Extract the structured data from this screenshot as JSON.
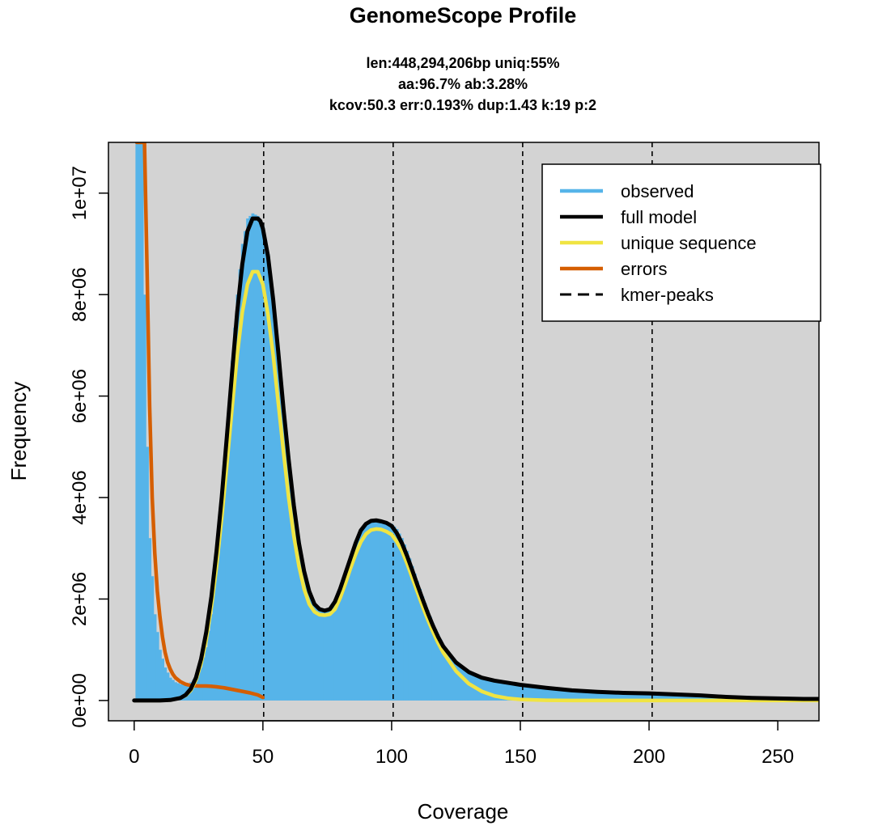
{
  "chart_data": {
    "type": "area",
    "title": "GenomeScope Profile",
    "subtitle_lines": [
      "len:448,294,206bp uniq:55%",
      "aa:96.7% ab:3.28%",
      "kcov:50.3 err:0.193%  dup:1.43  k:19 p:2"
    ],
    "xlabel": "Coverage",
    "ylabel": "Frequency",
    "xlim": [
      -10,
      266
    ],
    "ylim": [
      -400000,
      11000000
    ],
    "x_ticks": [
      0,
      50,
      100,
      150,
      200,
      250
    ],
    "x_tick_labels": [
      "0",
      "50",
      "100",
      "150",
      "200",
      "250"
    ],
    "y_ticks": [
      0,
      2000000,
      4000000,
      6000000,
      8000000,
      10000000
    ],
    "y_tick_labels": [
      "0e+00",
      "2e+06",
      "4e+06",
      "6e+06",
      "8e+06",
      "1e+07"
    ],
    "kmer_peaks": [
      50.3,
      100.6,
      150.9,
      201.2
    ],
    "legend_position": "top-right",
    "background": "#d3d3d3",
    "series": [
      {
        "name": "observed",
        "style": "bars",
        "color": "#56b4e9",
        "x": [
          1,
          2,
          3,
          4,
          5,
          6,
          8,
          10,
          12,
          14,
          16,
          18,
          20,
          22,
          24,
          26,
          28,
          30,
          32,
          34,
          36,
          38,
          40,
          42,
          44,
          46,
          48,
          50,
          52,
          54,
          56,
          58,
          60,
          62,
          64,
          66,
          68,
          70,
          72,
          74,
          76,
          78,
          80,
          82,
          84,
          86,
          88,
          90,
          92,
          94,
          96,
          98,
          100,
          102,
          104,
          106,
          108,
          110,
          112,
          114,
          116,
          118,
          120,
          125,
          130,
          135,
          140,
          145,
          150,
          160,
          170,
          180,
          190,
          200,
          210,
          220,
          230,
          240,
          250,
          260,
          266
        ],
        "y": [
          11000000,
          11000000,
          11000000,
          8000000,
          5000000,
          3200000,
          1700000,
          1000000,
          650000,
          450000,
          360000,
          320000,
          320000,
          360000,
          450000,
          650000,
          1050000,
          1700000,
          2600000,
          3800000,
          5200000,
          6700000,
          8000000,
          9000000,
          9500000,
          9600000,
          9550000,
          9350000,
          8800000,
          7900000,
          6900000,
          5800000,
          4800000,
          3900000,
          3150000,
          2550000,
          2150000,
          1900000,
          1800000,
          1780000,
          1820000,
          1950000,
          2200000,
          2500000,
          2850000,
          3150000,
          3380000,
          3500000,
          3560000,
          3570000,
          3550000,
          3520000,
          3480000,
          3380000,
          3200000,
          2950000,
          2650000,
          2350000,
          2050000,
          1780000,
          1520000,
          1300000,
          1100000,
          780000,
          580000,
          460000,
          400000,
          360000,
          320000,
          260000,
          210000,
          180000,
          160000,
          150000,
          130000,
          110000,
          80000,
          60000,
          50000,
          40000,
          40000
        ]
      },
      {
        "name": "full model",
        "style": "line",
        "color": "#000000",
        "x": [
          0,
          5,
          10,
          14,
          18,
          20,
          22,
          24,
          26,
          28,
          30,
          32,
          34,
          36,
          38,
          40,
          42,
          44,
          46,
          48,
          49,
          50,
          52,
          54,
          56,
          58,
          60,
          62,
          64,
          66,
          68,
          70,
          72,
          74,
          76,
          78,
          80,
          82,
          84,
          86,
          88,
          90,
          92,
          94,
          96,
          98,
          100,
          102,
          104,
          106,
          108,
          110,
          112,
          114,
          116,
          118,
          120,
          125,
          130,
          135,
          140,
          145,
          150,
          160,
          170,
          180,
          190,
          200,
          210,
          220,
          230,
          240,
          250,
          260,
          266
        ],
        "y": [
          0,
          0,
          0,
          10000,
          50000,
          110000,
          230000,
          450000,
          820000,
          1350000,
          2050000,
          2950000,
          4000000,
          5200000,
          6450000,
          7650000,
          8600000,
          9250000,
          9500000,
          9500000,
          9450000,
          9300000,
          8750000,
          7900000,
          6850000,
          5750000,
          4750000,
          3850000,
          3100000,
          2550000,
          2150000,
          1900000,
          1800000,
          1770000,
          1800000,
          1950000,
          2200000,
          2500000,
          2800000,
          3100000,
          3350000,
          3480000,
          3540000,
          3550000,
          3530000,
          3500000,
          3440000,
          3300000,
          3100000,
          2850000,
          2570000,
          2280000,
          2000000,
          1730000,
          1480000,
          1260000,
          1070000,
          750000,
          560000,
          450000,
          390000,
          350000,
          310000,
          250000,
          200000,
          170000,
          150000,
          140000,
          120000,
          100000,
          70000,
          50000,
          40000,
          30000,
          30000
        ]
      },
      {
        "name": "unique sequence",
        "style": "line",
        "color": "#f0e442",
        "x": [
          0,
          10,
          14,
          18,
          20,
          22,
          24,
          26,
          28,
          30,
          32,
          34,
          36,
          38,
          40,
          42,
          44,
          46,
          48,
          50,
          52,
          54,
          56,
          58,
          60,
          62,
          64,
          66,
          68,
          70,
          72,
          74,
          76,
          78,
          80,
          82,
          84,
          86,
          88,
          90,
          92,
          94,
          96,
          98,
          100,
          102,
          104,
          106,
          108,
          110,
          112,
          114,
          116,
          118,
          120,
          125,
          130,
          135,
          140,
          145,
          150,
          160,
          170,
          180,
          200,
          220,
          250,
          266
        ],
        "y": [
          0,
          0,
          10000,
          50000,
          100000,
          200000,
          400000,
          730000,
          1200000,
          1850000,
          2650000,
          3600000,
          4650000,
          5750000,
          6800000,
          7650000,
          8200000,
          8450000,
          8450000,
          8200000,
          7600000,
          6800000,
          5850000,
          4900000,
          4000000,
          3250000,
          2650000,
          2200000,
          1900000,
          1750000,
          1690000,
          1680000,
          1700000,
          1800000,
          2020000,
          2300000,
          2600000,
          2880000,
          3120000,
          3280000,
          3360000,
          3380000,
          3370000,
          3330000,
          3270000,
          3130000,
          2950000,
          2700000,
          2420000,
          2140000,
          1860000,
          1600000,
          1360000,
          1140000,
          950000,
          580000,
          330000,
          180000,
          90000,
          45000,
          20000,
          5000,
          0,
          0,
          0,
          0,
          0,
          0
        ]
      },
      {
        "name": "errors",
        "style": "line",
        "color": "#d55e00",
        "x": [
          1,
          2,
          3,
          4,
          5,
          6,
          7,
          8,
          9,
          10,
          11,
          12,
          13,
          14,
          15,
          16,
          18,
          20,
          22,
          25,
          28,
          30,
          32,
          35,
          38,
          40,
          42,
          45,
          48,
          50
        ],
        "y": [
          11000000,
          11000000,
          11000000,
          11000000,
          8500000,
          5800000,
          4000000,
          2900000,
          2150000,
          1650000,
          1250000,
          950000,
          750000,
          620000,
          520000,
          450000,
          370000,
          320000,
          295000,
          285000,
          285000,
          280000,
          270000,
          250000,
          220000,
          200000,
          180000,
          150000,
          110000,
          60000
        ]
      },
      {
        "name": "kmer-peaks",
        "style": "dashed",
        "color": "#000000"
      }
    ]
  }
}
